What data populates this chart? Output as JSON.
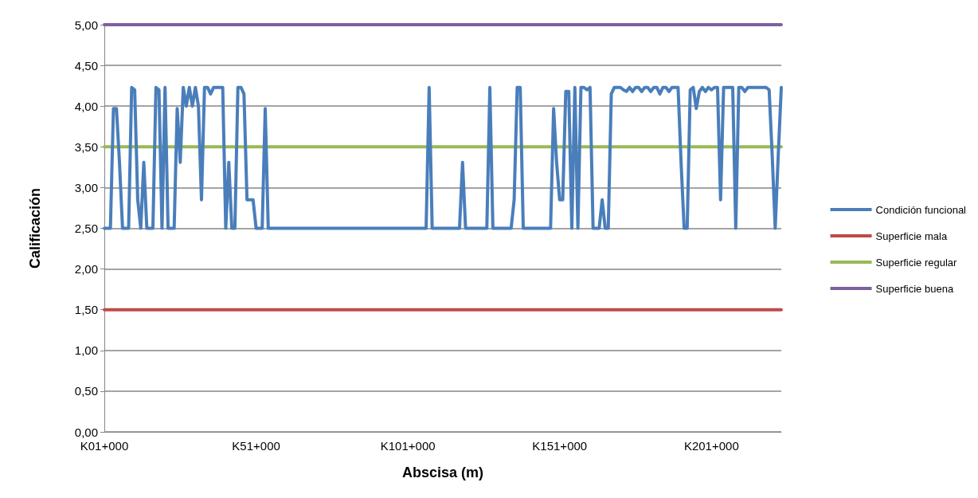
{
  "chart_data": {
    "type": "line",
    "xlabel": "Abscisa (m)",
    "ylabel": "Calificación",
    "categories": [
      "K01+000",
      null,
      null,
      null,
      null,
      null,
      null,
      null,
      null,
      null,
      null,
      null,
      null,
      null,
      null,
      null,
      null,
      null,
      null,
      null,
      null,
      null,
      null,
      null,
      null,
      null,
      null,
      null,
      null,
      null,
      null,
      null,
      null,
      null,
      null,
      null,
      null,
      null,
      null,
      null,
      null,
      null,
      null,
      null,
      null,
      null,
      null,
      null,
      null,
      null,
      "K51+000",
      null,
      null,
      null,
      null,
      null,
      null,
      null,
      null,
      null,
      null,
      null,
      null,
      null,
      null,
      null,
      null,
      null,
      null,
      null,
      null,
      null,
      null,
      null,
      null,
      null,
      null,
      null,
      null,
      null,
      null,
      null,
      null,
      null,
      null,
      null,
      null,
      null,
      null,
      null,
      null,
      null,
      null,
      null,
      null,
      null,
      null,
      null,
      null,
      null,
      "K101+000",
      null,
      null,
      null,
      null,
      null,
      null,
      null,
      null,
      null,
      null,
      null,
      null,
      null,
      null,
      null,
      null,
      null,
      null,
      null,
      null,
      null,
      null,
      null,
      null,
      null,
      null,
      null,
      null,
      null,
      null,
      null,
      null,
      null,
      null,
      null,
      null,
      null,
      null,
      null,
      null,
      null,
      null,
      null,
      null,
      null,
      null,
      null,
      null,
      null,
      "K151+000",
      null,
      null,
      null,
      null,
      null,
      null,
      null,
      null,
      null,
      null,
      null,
      null,
      null,
      null,
      null,
      null,
      null,
      null,
      null,
      null,
      null,
      null,
      null,
      null,
      null,
      null,
      null,
      null,
      null,
      null,
      null,
      null,
      null,
      null,
      null,
      null,
      null,
      null,
      null,
      null,
      null,
      null,
      null,
      null,
      null,
      null,
      null,
      null,
      null,
      "K201+000",
      null,
      null,
      null,
      null,
      null,
      null,
      null,
      null,
      null,
      null,
      null,
      null,
      null,
      null,
      null,
      null,
      null,
      null,
      null,
      null,
      null,
      null,
      null
    ],
    "ylim": [
      0,
      5
    ],
    "yticks": [
      {
        "value": 0,
        "label": "0,00"
      },
      {
        "value": 0.5,
        "label": "0,50"
      },
      {
        "value": 1,
        "label": "1,00"
      },
      {
        "value": 1.5,
        "label": "1,50"
      },
      {
        "value": 2,
        "label": "2,00"
      },
      {
        "value": 2.5,
        "label": "2,50"
      },
      {
        "value": 3,
        "label": "3,00"
      },
      {
        "value": 3.5,
        "label": "3,50"
      },
      {
        "value": 4,
        "label": "4,00"
      },
      {
        "value": 4.5,
        "label": "4,50"
      },
      {
        "value": 5,
        "label": "5,00"
      }
    ],
    "grid": "y",
    "legend": "right",
    "marker": "none",
    "line_style": "solid",
    "series": [
      {
        "name": "Condición funcional",
        "color": "#4a7ebb",
        "values": [
          2.5,
          2.5,
          2.5,
          3.97,
          3.97,
          3.3,
          2.5,
          2.5,
          2.5,
          4.23,
          4.2,
          2.85,
          2.5,
          3.31,
          2.5,
          2.5,
          2.5,
          4.23,
          4.2,
          2.5,
          4.23,
          2.5,
          2.5,
          2.5,
          3.97,
          3.31,
          4.23,
          4.0,
          4.23,
          4.0,
          4.23,
          4.0,
          2.85,
          4.23,
          4.23,
          4.15,
          4.23,
          4.23,
          4.23,
          4.23,
          2.5,
          3.31,
          2.5,
          2.5,
          4.23,
          4.23,
          4.15,
          2.85,
          2.85,
          2.85,
          2.5,
          2.5,
          2.5,
          3.97,
          2.5,
          2.5,
          2.5,
          2.5,
          2.5,
          2.5,
          2.5,
          2.5,
          2.5,
          2.5,
          2.5,
          2.5,
          2.5,
          2.5,
          2.5,
          2.5,
          2.5,
          2.5,
          2.5,
          2.5,
          2.5,
          2.5,
          2.5,
          2.5,
          2.5,
          2.5,
          2.5,
          2.5,
          2.5,
          2.5,
          2.5,
          2.5,
          2.5,
          2.5,
          2.5,
          2.5,
          2.5,
          2.5,
          2.5,
          2.5,
          2.5,
          2.5,
          2.5,
          2.5,
          2.5,
          2.5,
          2.5,
          2.5,
          2.5,
          2.5,
          2.5,
          2.5,
          2.5,
          4.23,
          2.5,
          2.5,
          2.5,
          2.5,
          2.5,
          2.5,
          2.5,
          2.5,
          2.5,
          2.5,
          3.31,
          2.5,
          2.5,
          2.5,
          2.5,
          2.5,
          2.5,
          2.5,
          2.5,
          4.23,
          2.5,
          2.5,
          2.5,
          2.5,
          2.5,
          2.5,
          2.5,
          2.85,
          4.23,
          4.23,
          2.5,
          2.5,
          2.5,
          2.5,
          2.5,
          2.5,
          2.5,
          2.5,
          2.5,
          2.5,
          3.97,
          3.3,
          2.85,
          2.85,
          4.18,
          4.18,
          2.5,
          4.23,
          2.5,
          4.23,
          4.23,
          4.2,
          4.23,
          2.5,
          2.5,
          2.5,
          2.85,
          2.5,
          2.5,
          4.15,
          4.23,
          4.23,
          4.23,
          4.2,
          4.18,
          4.23,
          4.18,
          4.23,
          4.23,
          4.18,
          4.23,
          4.23,
          4.18,
          4.23,
          4.23,
          4.15,
          4.23,
          4.23,
          4.18,
          4.23,
          4.23,
          4.23,
          3.3,
          2.5,
          2.5,
          4.2,
          4.23,
          3.97,
          4.18,
          4.23,
          4.18,
          4.23,
          4.2,
          4.23,
          4.23,
          2.85,
          4.23,
          4.23,
          4.23,
          4.23,
          2.5,
          4.23,
          4.23,
          4.18,
          4.23,
          4.23,
          4.23,
          4.23,
          4.23,
          4.23,
          4.23,
          4.2,
          3.4,
          2.5,
          3.4,
          4.23
        ]
      },
      {
        "name": "Superficie mala",
        "color": "#be4b48",
        "values": [
          1.5,
          1.5,
          1.5,
          1.5,
          1.5,
          1.5,
          1.5,
          1.5,
          1.5,
          1.5,
          1.5,
          1.5,
          1.5,
          1.5,
          1.5,
          1.5,
          1.5,
          1.5,
          1.5,
          1.5,
          1.5,
          1.5,
          1.5,
          1.5,
          1.5,
          1.5,
          1.5,
          1.5,
          1.5,
          1.5,
          1.5,
          1.5,
          1.5,
          1.5,
          1.5,
          1.5,
          1.5,
          1.5,
          1.5,
          1.5,
          1.5,
          1.5,
          1.5,
          1.5,
          1.5,
          1.5,
          1.5,
          1.5,
          1.5,
          1.5,
          1.5,
          1.5,
          1.5,
          1.5,
          1.5,
          1.5,
          1.5,
          1.5,
          1.5,
          1.5,
          1.5,
          1.5,
          1.5,
          1.5,
          1.5,
          1.5,
          1.5,
          1.5,
          1.5,
          1.5,
          1.5,
          1.5,
          1.5,
          1.5,
          1.5,
          1.5,
          1.5,
          1.5,
          1.5,
          1.5,
          1.5,
          1.5,
          1.5,
          1.5,
          1.5,
          1.5,
          1.5,
          1.5,
          1.5,
          1.5,
          1.5,
          1.5,
          1.5,
          1.5,
          1.5,
          1.5,
          1.5,
          1.5,
          1.5,
          1.5,
          1.5,
          1.5,
          1.5,
          1.5,
          1.5,
          1.5,
          1.5,
          1.5,
          1.5,
          1.5,
          1.5,
          1.5,
          1.5,
          1.5,
          1.5,
          1.5,
          1.5,
          1.5,
          1.5,
          1.5,
          1.5,
          1.5,
          1.5,
          1.5,
          1.5,
          1.5,
          1.5,
          1.5,
          1.5,
          1.5,
          1.5,
          1.5,
          1.5,
          1.5,
          1.5,
          1.5,
          1.5,
          1.5,
          1.5,
          1.5,
          1.5,
          1.5,
          1.5,
          1.5,
          1.5,
          1.5,
          1.5,
          1.5,
          1.5,
          1.5,
          1.5,
          1.5,
          1.5,
          1.5,
          1.5,
          1.5,
          1.5,
          1.5,
          1.5,
          1.5,
          1.5,
          1.5,
          1.5,
          1.5,
          1.5,
          1.5,
          1.5,
          1.5,
          1.5,
          1.5,
          1.5,
          1.5,
          1.5,
          1.5,
          1.5,
          1.5,
          1.5,
          1.5,
          1.5,
          1.5,
          1.5,
          1.5,
          1.5,
          1.5,
          1.5,
          1.5,
          1.5,
          1.5,
          1.5,
          1.5,
          1.5,
          1.5,
          1.5,
          1.5,
          1.5,
          1.5,
          1.5,
          1.5,
          1.5,
          1.5,
          1.5,
          1.5,
          1.5,
          1.5,
          1.5,
          1.5,
          1.5,
          1.5,
          1.5,
          1.5,
          1.5,
          1.5,
          1.5,
          1.5,
          1.5,
          1.5,
          1.5,
          1.5,
          1.5,
          1.5,
          1.5,
          1.5,
          1.5,
          1.5
        ]
      },
      {
        "name": "Superficie regular",
        "color": "#98b954",
        "values": [
          3.5,
          3.5,
          3.5,
          3.5,
          3.5,
          3.5,
          3.5,
          3.5,
          3.5,
          3.5,
          3.5,
          3.5,
          3.5,
          3.5,
          3.5,
          3.5,
          3.5,
          3.5,
          3.5,
          3.5,
          3.5,
          3.5,
          3.5,
          3.5,
          3.5,
          3.5,
          3.5,
          3.5,
          3.5,
          3.5,
          3.5,
          3.5,
          3.5,
          3.5,
          3.5,
          3.5,
          3.5,
          3.5,
          3.5,
          3.5,
          3.5,
          3.5,
          3.5,
          3.5,
          3.5,
          3.5,
          3.5,
          3.5,
          3.5,
          3.5,
          3.5,
          3.5,
          3.5,
          3.5,
          3.5,
          3.5,
          3.5,
          3.5,
          3.5,
          3.5,
          3.5,
          3.5,
          3.5,
          3.5,
          3.5,
          3.5,
          3.5,
          3.5,
          3.5,
          3.5,
          3.5,
          3.5,
          3.5,
          3.5,
          3.5,
          3.5,
          3.5,
          3.5,
          3.5,
          3.5,
          3.5,
          3.5,
          3.5,
          3.5,
          3.5,
          3.5,
          3.5,
          3.5,
          3.5,
          3.5,
          3.5,
          3.5,
          3.5,
          3.5,
          3.5,
          3.5,
          3.5,
          3.5,
          3.5,
          3.5,
          3.5,
          3.5,
          3.5,
          3.5,
          3.5,
          3.5,
          3.5,
          3.5,
          3.5,
          3.5,
          3.5,
          3.5,
          3.5,
          3.5,
          3.5,
          3.5,
          3.5,
          3.5,
          3.5,
          3.5,
          3.5,
          3.5,
          3.5,
          3.5,
          3.5,
          3.5,
          3.5,
          3.5,
          3.5,
          3.5,
          3.5,
          3.5,
          3.5,
          3.5,
          3.5,
          3.5,
          3.5,
          3.5,
          3.5,
          3.5,
          3.5,
          3.5,
          3.5,
          3.5,
          3.5,
          3.5,
          3.5,
          3.5,
          3.5,
          3.5,
          3.5,
          3.5,
          3.5,
          3.5,
          3.5,
          3.5,
          3.5,
          3.5,
          3.5,
          3.5,
          3.5,
          3.5,
          3.5,
          3.5,
          3.5,
          3.5,
          3.5,
          3.5,
          3.5,
          3.5,
          3.5,
          3.5,
          3.5,
          3.5,
          3.5,
          3.5,
          3.5,
          3.5,
          3.5,
          3.5,
          3.5,
          3.5,
          3.5,
          3.5,
          3.5,
          3.5,
          3.5,
          3.5,
          3.5,
          3.5,
          3.5,
          3.5,
          3.5,
          3.5,
          3.5,
          3.5,
          3.5,
          3.5,
          3.5,
          3.5,
          3.5,
          3.5,
          3.5,
          3.5,
          3.5,
          3.5,
          3.5,
          3.5,
          3.5,
          3.5,
          3.5,
          3.5,
          3.5,
          3.5,
          3.5,
          3.5,
          3.5,
          3.5,
          3.5,
          3.5,
          3.5,
          3.5,
          3.5,
          3.5
        ]
      },
      {
        "name": "Superficie buena",
        "color": "#7d60a0",
        "values": [
          5,
          5,
          5,
          5,
          5,
          5,
          5,
          5,
          5,
          5,
          5,
          5,
          5,
          5,
          5,
          5,
          5,
          5,
          5,
          5,
          5,
          5,
          5,
          5,
          5,
          5,
          5,
          5,
          5,
          5,
          5,
          5,
          5,
          5,
          5,
          5,
          5,
          5,
          5,
          5,
          5,
          5,
          5,
          5,
          5,
          5,
          5,
          5,
          5,
          5,
          5,
          5,
          5,
          5,
          5,
          5,
          5,
          5,
          5,
          5,
          5,
          5,
          5,
          5,
          5,
          5,
          5,
          5,
          5,
          5,
          5,
          5,
          5,
          5,
          5,
          5,
          5,
          5,
          5,
          5,
          5,
          5,
          5,
          5,
          5,
          5,
          5,
          5,
          5,
          5,
          5,
          5,
          5,
          5,
          5,
          5,
          5,
          5,
          5,
          5,
          5,
          5,
          5,
          5,
          5,
          5,
          5,
          5,
          5,
          5,
          5,
          5,
          5,
          5,
          5,
          5,
          5,
          5,
          5,
          5,
          5,
          5,
          5,
          5,
          5,
          5,
          5,
          5,
          5,
          5,
          5,
          5,
          5,
          5,
          5,
          5,
          5,
          5,
          5,
          5,
          5,
          5,
          5,
          5,
          5,
          5,
          5,
          5,
          5,
          5,
          5,
          5,
          5,
          5,
          5,
          5,
          5,
          5,
          5,
          5,
          5,
          5,
          5,
          5,
          5,
          5,
          5,
          5,
          5,
          5,
          5,
          5,
          5,
          5,
          5,
          5,
          5,
          5,
          5,
          5,
          5,
          5,
          5,
          5,
          5,
          5,
          5,
          5,
          5,
          5,
          5,
          5,
          5,
          5,
          5,
          5,
          5,
          5,
          5,
          5,
          5,
          5,
          5,
          5,
          5,
          5,
          5,
          5,
          5,
          5,
          5,
          5,
          5,
          5,
          5,
          5,
          5,
          5,
          5,
          5,
          5,
          5,
          5,
          5
        ]
      }
    ]
  }
}
